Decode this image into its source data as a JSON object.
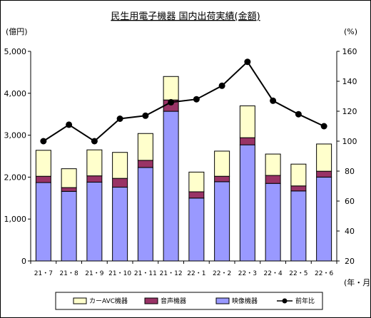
{
  "chart_data": {
    "type": "bar",
    "stacked": true,
    "title": "民生用電子機器 国内出荷実績(金額)",
    "y_left_unit": "(億円)",
    "y_right_unit": "(%)",
    "x_unit": "(年・月)",
    "categories": [
      "21・7",
      "21・8",
      "21・9",
      "21・10",
      "21・11",
      "21・12",
      "22・1",
      "22・2",
      "22・3",
      "22・4",
      "22・5",
      "22・6"
    ],
    "y_left_ticks": [
      "0",
      "1,000",
      "2,000",
      "3,000",
      "4,000",
      "5,000"
    ],
    "y_right_ticks": [
      "20",
      "40",
      "60",
      "80",
      "100",
      "120",
      "140",
      "160"
    ],
    "ylim_left": [
      0,
      5000
    ],
    "ylim_right": [
      20,
      160
    ],
    "series": [
      {
        "name": "映像機器",
        "color": "#9999ff",
        "axis": "left",
        "values": [
          1870,
          1660,
          1880,
          1760,
          2230,
          3570,
          1500,
          1890,
          2770,
          1850,
          1670,
          2000
        ]
      },
      {
        "name": "音声機器",
        "color": "#993366",
        "axis": "left",
        "values": [
          150,
          90,
          150,
          210,
          170,
          270,
          150,
          130,
          170,
          190,
          120,
          140
        ]
      },
      {
        "name": "カーAVC機器",
        "color": "#ffffcc",
        "axis": "left",
        "values": [
          620,
          450,
          620,
          620,
          640,
          560,
          470,
          600,
          760,
          510,
          520,
          650
        ]
      },
      {
        "name": "前年比",
        "color": "#000000",
        "axis": "right",
        "type": "line",
        "values": [
          100,
          111,
          100,
          115,
          117,
          126,
          128,
          137,
          153,
          127,
          118,
          110
        ]
      }
    ],
    "legend_position": "bottom",
    "grid": false
  }
}
